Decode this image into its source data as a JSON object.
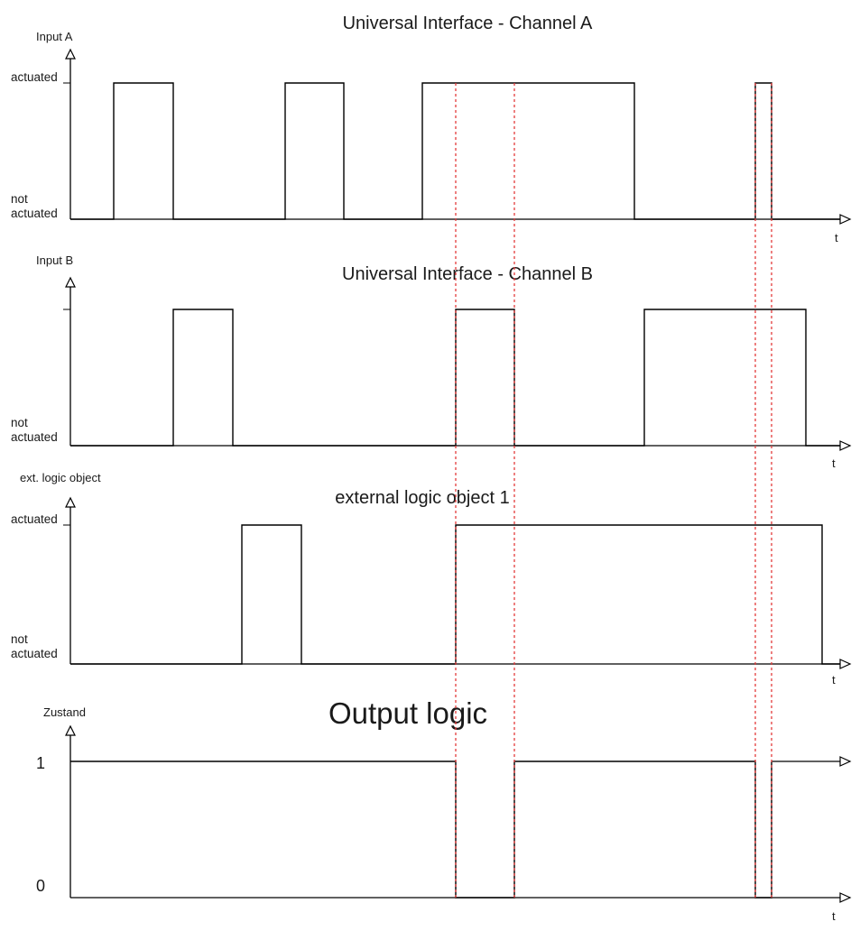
{
  "colors": {
    "signal": "#000000",
    "marker": "#e33b3b",
    "background": "#ffffff"
  },
  "panels": [
    {
      "id": "input-a",
      "title": "Universal Interface - Channel A",
      "ylabel": "Input A",
      "high_label": "actuated",
      "low_label": "not actuated",
      "time_label": "t",
      "initial": 0,
      "transitions": [
        126,
        192,
        316,
        381,
        468,
        703,
        837,
        855
      ]
    },
    {
      "id": "input-b",
      "title": "Universal Interface - Channel B",
      "ylabel": "Input B",
      "high_label": "",
      "low_label": "not actuated",
      "time_label": "t",
      "initial": 0,
      "transitions": [
        192,
        258,
        505,
        570,
        714,
        893
      ]
    },
    {
      "id": "ext-logic",
      "title": "external logic object 1",
      "ylabel": "ext. logic object",
      "high_label": "actuated",
      "low_label": "not actuated",
      "time_label": "t",
      "initial": 0,
      "transitions": [
        268,
        334,
        505,
        911
      ]
    },
    {
      "id": "output",
      "title": "Output logic",
      "ylabel": "Zustand",
      "high_label": "1",
      "low_label": "0",
      "time_label": "t",
      "initial": 1,
      "transitions": [
        505,
        570,
        837,
        855
      ]
    }
  ],
  "markers": [
    505,
    570,
    837,
    855
  ]
}
